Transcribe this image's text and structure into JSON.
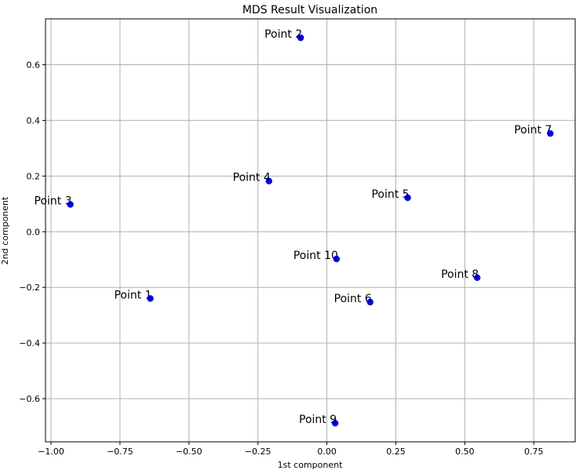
{
  "chart_data": {
    "type": "scatter",
    "title": "MDS Result Visualization",
    "xlabel": "1st component",
    "ylabel": "2nd component",
    "xlim": [
      -1.02,
      0.9
    ],
    "ylim": [
      -0.755,
      0.765
    ],
    "grid": true,
    "marker_color": "#0000ff",
    "xticks": [
      -1.0,
      -0.75,
      -0.5,
      -0.25,
      0.0,
      0.25,
      0.5,
      0.75
    ],
    "xtick_labels": [
      "−1.00",
      "−0.75",
      "−0.50",
      "−0.25",
      "0.00",
      "0.25",
      "0.50",
      "0.75"
    ],
    "yticks": [
      -0.6,
      -0.4,
      -0.2,
      0.0,
      0.2,
      0.4,
      0.6
    ],
    "ytick_labels": [
      "−0.6",
      "−0.4",
      "−0.2",
      "0.0",
      "0.2",
      "0.4",
      "0.6"
    ],
    "points": [
      {
        "label": "Point 1",
        "x": -0.64,
        "y": -0.24
      },
      {
        "label": "Point 2",
        "x": -0.095,
        "y": 0.697
      },
      {
        "label": "Point 3",
        "x": -0.93,
        "y": 0.098
      },
      {
        "label": "Point 4",
        "x": -0.21,
        "y": 0.182
      },
      {
        "label": "Point 5",
        "x": 0.293,
        "y": 0.122
      },
      {
        "label": "Point 6",
        "x": 0.157,
        "y": -0.253
      },
      {
        "label": "Point 7",
        "x": 0.81,
        "y": 0.353
      },
      {
        "label": "Point 8",
        "x": 0.545,
        "y": -0.165
      },
      {
        "label": "Point 9",
        "x": 0.03,
        "y": -0.688
      },
      {
        "label": "Point 10",
        "x": 0.035,
        "y": -0.098
      }
    ]
  }
}
